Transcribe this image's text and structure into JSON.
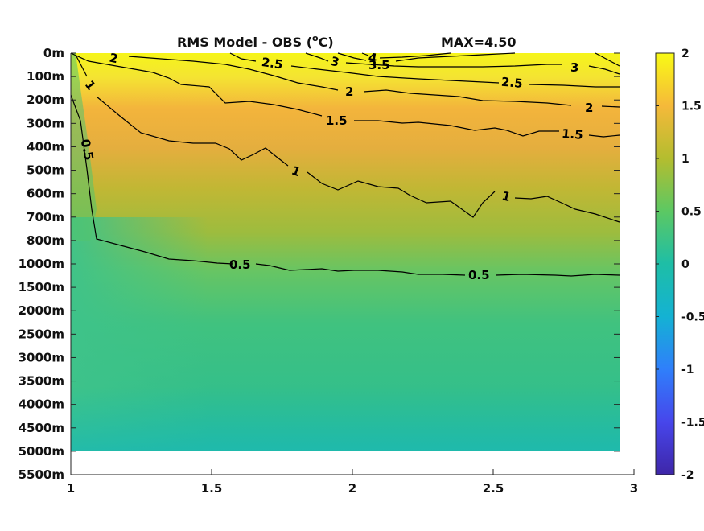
{
  "chart_data": {
    "type": "heatmap",
    "title": "RMS Model - OBS (",
    "title_unit_sup": "o",
    "title_unit_suffix": "C)",
    "max_label": "MAX=4.50",
    "x_ticks": [
      "1",
      "1.5",
      "2",
      "2.5",
      "3"
    ],
    "x_range": [
      1,
      3
    ],
    "y_ticks": [
      "0m",
      "100m",
      "200m",
      "300m",
      "400m",
      "500m",
      "600m",
      "700m",
      "800m",
      "1000m",
      "1500m",
      "2000m",
      "2500m",
      "3000m",
      "3500m",
      "4000m",
      "4500m",
      "5000m",
      "5500m"
    ],
    "colorbar": {
      "range": [
        -2,
        2
      ],
      "ticks": [
        "2",
        "1.5",
        "1",
        "0.5",
        "0",
        "-0.5",
        "-1",
        "-1.5",
        "-2"
      ],
      "colormap": [
        "#3e26a8",
        "#4746eb",
        "#2f7ffb",
        "#14b2d3",
        "#1ebea6",
        "#5cc863",
        "#b4bd2f",
        "#f5b93a",
        "#f9fb15"
      ]
    },
    "contours": [
      {
        "level": "0.5",
        "labels": [
          "0.5",
          "0.5",
          "0.5"
        ]
      },
      {
        "level": "1",
        "labels": [
          "1",
          "1",
          "1"
        ]
      },
      {
        "level": "1.5",
        "labels": [
          "1.5",
          "1.5"
        ]
      },
      {
        "level": "2",
        "labels": [
          "2",
          "2",
          "2"
        ]
      },
      {
        "level": "2.5",
        "labels": [
          "2.5",
          "2.5"
        ]
      },
      {
        "level": "3",
        "labels": [
          "3",
          "3"
        ]
      },
      {
        "level": "3.5",
        "labels": [
          "3.5"
        ]
      },
      {
        "level": "4",
        "labels": [
          "4"
        ]
      }
    ]
  }
}
